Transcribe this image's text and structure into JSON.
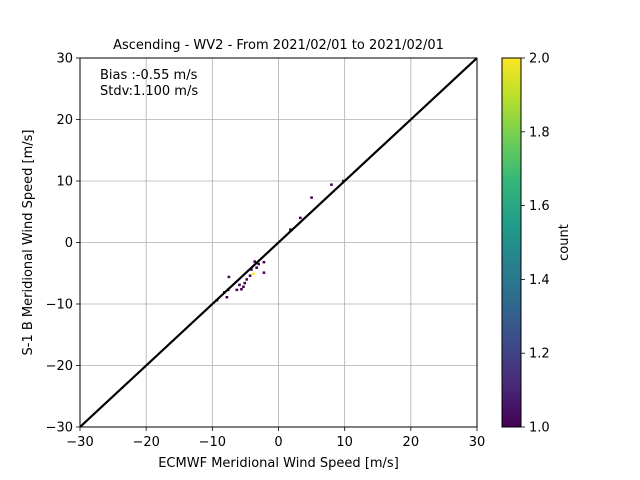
{
  "chart_data": {
    "type": "heatmap",
    "title": "Ascending - WV2 - From 2021/02/01 to 2021/02/01",
    "xlabel": "ECMWF Meridional Wind Speed [m/s]",
    "ylabel": "S-1 B Meridional Wind Speed [m/s]",
    "xlim": [
      -30,
      30
    ],
    "ylim": [
      -30,
      30
    ],
    "xticks": [
      -30,
      -20,
      -10,
      0,
      10,
      20,
      30
    ],
    "yticks": [
      -30,
      -20,
      -10,
      0,
      10,
      20,
      30
    ],
    "xtick_labels": [
      "−30",
      "−20",
      "−10",
      "0",
      "10",
      "20",
      "30"
    ],
    "ytick_labels": [
      "−30",
      "−20",
      "−10",
      "0",
      "10",
      "20",
      "30"
    ],
    "grid": true,
    "reference_line": {
      "x": [
        -30,
        30
      ],
      "y": [
        -30,
        30
      ],
      "color": "#000000"
    },
    "annotations": [
      "Bias :-0.55 m/s",
      "Stdv:1.100 m/s"
    ],
    "colorbar": {
      "label": "count",
      "range": [
        1.0,
        2.0
      ],
      "ticks": [
        1.0,
        1.2,
        1.4,
        1.6,
        1.8,
        2.0
      ],
      "tick_labels": [
        "1.0",
        "1.2",
        "1.4",
        "1.6",
        "1.8",
        "2.0"
      ],
      "colormap": "viridis",
      "colors": [
        "#440154",
        "#482878",
        "#3e4989",
        "#31688e",
        "#26828e",
        "#1f9e89",
        "#35b779",
        "#6ece58",
        "#b5de2b",
        "#fde725"
      ]
    },
    "bin_size": [
      0.4,
      0.4
    ],
    "points": [
      {
        "x": 9.8,
        "y": 10.0,
        "count": 1
      },
      {
        "x": 8.0,
        "y": 9.4,
        "count": 1
      },
      {
        "x": 5.0,
        "y": 7.3,
        "count": 1
      },
      {
        "x": 3.3,
        "y": 4.0,
        "count": 1
      },
      {
        "x": 1.8,
        "y": 2.1,
        "count": 1
      },
      {
        "x": -2.2,
        "y": -3.2,
        "count": 1
      },
      {
        "x": -2.2,
        "y": -4.9,
        "count": 1
      },
      {
        "x": -3.0,
        "y": -3.5,
        "count": 1
      },
      {
        "x": -3.3,
        "y": -4.1,
        "count": 1
      },
      {
        "x": -3.6,
        "y": -3.1,
        "count": 1
      },
      {
        "x": -3.8,
        "y": -5.1,
        "count": 2
      },
      {
        "x": -4.1,
        "y": -4.4,
        "count": 1
      },
      {
        "x": -4.3,
        "y": -5.4,
        "count": 1
      },
      {
        "x": -4.8,
        "y": -6.0,
        "count": 1
      },
      {
        "x": -5.1,
        "y": -6.6,
        "count": 1
      },
      {
        "x": -5.3,
        "y": -7.2,
        "count": 1
      },
      {
        "x": -5.6,
        "y": -7.6,
        "count": 1
      },
      {
        "x": -5.9,
        "y": -6.9,
        "count": 1
      },
      {
        "x": -6.3,
        "y": -7.7,
        "count": 1
      },
      {
        "x": -7.5,
        "y": -5.6,
        "count": 1
      },
      {
        "x": -7.6,
        "y": -7.7,
        "count": 1
      },
      {
        "x": -7.8,
        "y": -8.9,
        "count": 1
      },
      {
        "x": -8.2,
        "y": -8.1,
        "count": 1
      },
      {
        "x": -9.3,
        "y": -9.4,
        "count": 1
      }
    ]
  }
}
